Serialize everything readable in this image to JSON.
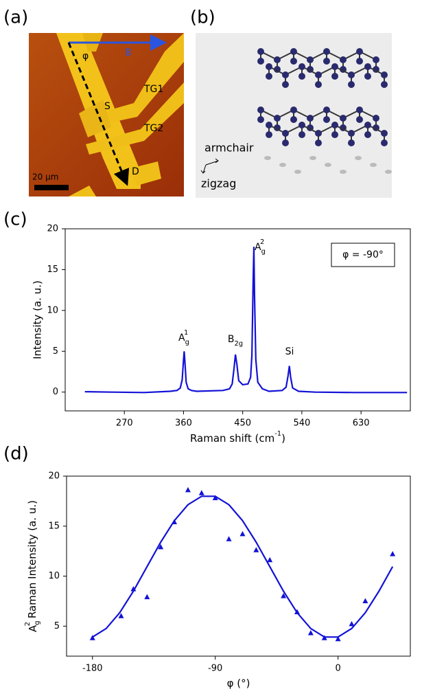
{
  "panel_a": {
    "label": "(a)",
    "direction": "B",
    "angle": "φ",
    "gate1": "TG1",
    "gate2": "TG2",
    "source": "S",
    "drain": "D",
    "scale": "20 μm"
  },
  "panel_b": {
    "label": "(b)",
    "armchair": "armchair",
    "zigzag": "zigzag"
  },
  "chart_data": [
    {
      "type": "line",
      "panel_label": "(c)",
      "xlabel": {
        "text": "Raman shift (cm",
        "sup": "-1",
        "tail": ")"
      },
      "ylabel": "Intensity (a. u.)",
      "legend_text": "φ = -90°",
      "color": "#1212d6",
      "x": [
        210,
        250,
        300,
        340,
        350,
        355,
        358,
        360,
        361,
        362,
        364,
        367,
        372,
        380,
        420,
        430,
        434,
        437,
        439,
        441,
        444,
        450,
        458,
        462,
        464,
        466,
        467,
        468,
        470,
        473,
        480,
        490,
        510,
        516,
        519,
        521,
        523,
        526,
        535,
        560,
        620,
        700
      ],
      "values": [
        0.05,
        0,
        -0.05,
        0.1,
        0.2,
        0.5,
        1.5,
        4,
        5,
        3.8,
        1.2,
        0.4,
        0.2,
        0.1,
        0.2,
        0.4,
        1,
        3,
        4.6,
        3.5,
        1.4,
        0.9,
        1,
        1.8,
        4.5,
        14,
        17.8,
        12,
        4,
        1.2,
        0.4,
        0.1,
        0.2,
        0.6,
        2,
        3.2,
        1.8,
        0.5,
        0.1,
        0,
        -0.05,
        -0.05
      ],
      "xlim": [
        180,
        705
      ],
      "ylim": [
        -2.3,
        20
      ],
      "xticks": [
        270,
        360,
        450,
        540,
        630
      ],
      "yticks": [
        0,
        5,
        10,
        15,
        20
      ],
      "peak_labels": [
        {
          "text": "A",
          "sub": "g",
          "sup": "1"
        },
        {
          "text": "B",
          "sub": "2g"
        },
        {
          "text": "A",
          "sub": "g",
          "sup": "2"
        },
        {
          "text": "Si"
        }
      ]
    },
    {
      "type": "scatter",
      "panel_label": "(d)",
      "xlabel": "φ (°)",
      "ylabel": {
        "text": "A",
        "sub": "g",
        "sup": "2",
        "tail": " Raman Intensity (a. u.)"
      },
      "series": [
        {
          "type": "scatter",
          "marker": "triangle",
          "color": "#1212d6",
          "x": [
            -180,
            -159,
            -150,
            -140,
            -130,
            -120,
            -110,
            -100,
            -90,
            -80,
            -70,
            -60,
            -50,
            -40,
            -30,
            -20,
            -10,
            0,
            10,
            20,
            40
          ],
          "values": [
            3.8,
            6.0,
            8.7,
            7.9,
            12.9,
            15.4,
            18.6,
            18.3,
            17.8,
            13.7,
            14.2,
            12.6,
            11.6,
            8.0,
            6.4,
            4.3,
            3.8,
            3.7,
            5.2,
            7.5,
            12.2
          ]
        },
        {
          "type": "line",
          "color": "#1212d6",
          "x": [
            -180,
            -170,
            -160,
            -150,
            -140,
            -130,
            -120,
            -110,
            -100,
            -90,
            -80,
            -70,
            -60,
            -50,
            -40,
            -30,
            -20,
            -10,
            0,
            10,
            20,
            30,
            40
          ],
          "values": [
            3.91,
            4.76,
            6.35,
            8.5,
            10.95,
            13.4,
            15.55,
            17.14,
            17.99,
            17.99,
            17.14,
            15.55,
            13.4,
            10.95,
            8.5,
            6.35,
            4.76,
            3.91,
            3.91,
            4.76,
            6.35,
            8.5,
            10.95
          ]
        }
      ],
      "xlim": [
        -199,
        53
      ],
      "ylim": [
        2,
        20
      ],
      "xticks": [
        -180,
        -90,
        0
      ],
      "yticks": [
        5,
        10,
        15,
        20
      ]
    }
  ]
}
